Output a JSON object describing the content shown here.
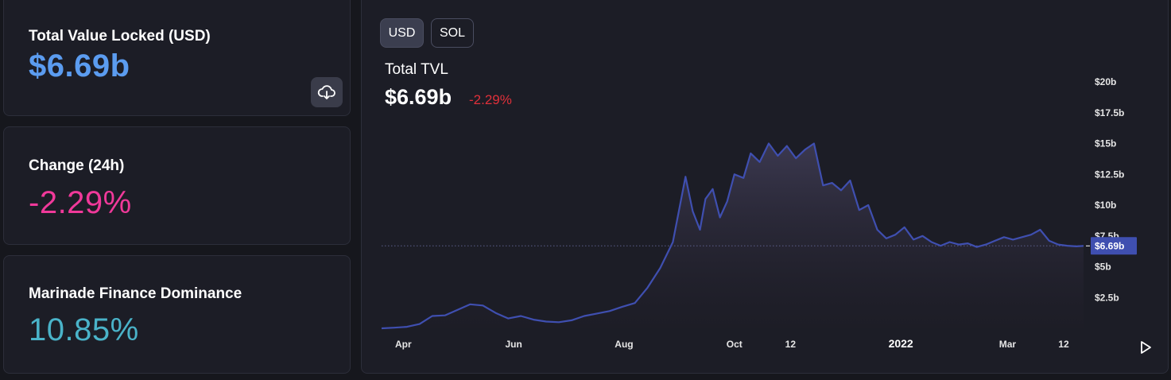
{
  "stats": {
    "tvl_label": "Total Value Locked (USD)",
    "tvl_value": "$6.69b",
    "change_label": "Change (24h)",
    "change_value": "-2.29%",
    "dominance_label": "Marinade Finance Dominance",
    "dominance_value": "10.85%"
  },
  "icons": {
    "download": "download-cloud-icon",
    "play": "play-icon"
  },
  "toggle": {
    "usd_label": "USD",
    "sol_label": "SOL",
    "selected": "USD"
  },
  "chart_header": {
    "title": "Total TVL",
    "value": "$6.69b",
    "change": "-2.29%"
  },
  "colors": {
    "tvl_value": "#5b9cf0",
    "change_value": "#f0399a",
    "dominance_value": "#4ab3c9",
    "chart_change": "#e0303a",
    "line": "#3f4fb0",
    "marker_bg": "#3f4fb0"
  },
  "chart_data": {
    "type": "area",
    "series": [
      {
        "x": [
          "2021-03-20",
          "2021-03-27",
          "2021-04-03",
          "2021-04-10",
          "2021-04-17",
          "2021-04-24",
          "2021-05-01",
          "2021-05-08",
          "2021-05-15",
          "2021-05-22",
          "2021-05-29",
          "2021-06-05",
          "2021-06-12",
          "2021-06-19",
          "2021-06-26",
          "2021-07-03",
          "2021-07-10",
          "2021-07-17",
          "2021-07-24",
          "2021-07-31",
          "2021-08-07",
          "2021-08-14",
          "2021-08-21",
          "2021-08-28",
          "2021-09-04",
          "2021-09-08",
          "2021-09-12",
          "2021-09-15",
          "2021-09-19",
          "2021-09-23",
          "2021-09-27",
          "2021-10-01",
          "2021-10-06",
          "2021-10-10",
          "2021-10-15",
          "2021-10-20",
          "2021-10-25",
          "2021-10-30",
          "2021-11-04",
          "2021-11-09",
          "2021-11-14",
          "2021-11-19",
          "2021-11-24",
          "2021-11-29",
          "2021-12-04",
          "2021-12-09",
          "2021-12-14",
          "2021-12-19",
          "2021-12-24",
          "2021-12-29",
          "2022-01-03",
          "2022-01-08",
          "2022-01-13",
          "2022-01-18",
          "2022-01-23",
          "2022-01-28",
          "2022-02-02",
          "2022-02-07",
          "2022-02-12",
          "2022-02-17",
          "2022-02-22",
          "2022-02-27",
          "2022-03-04",
          "2022-03-09",
          "2022-03-14",
          "2022-03-19",
          "2022-03-24",
          "2022-03-29",
          "2022-04-03",
          "2022-04-08",
          "2022-04-12"
        ],
        "values": [
          0.0,
          0.05,
          0.12,
          0.35,
          1.0,
          1.05,
          1.5,
          1.95,
          1.85,
          1.25,
          0.8,
          1.0,
          0.7,
          0.55,
          0.5,
          0.65,
          1.0,
          1.2,
          1.4,
          1.75,
          2.05,
          3.3,
          4.9,
          7.0,
          12.3,
          9.5,
          8.0,
          10.5,
          11.3,
          9.0,
          10.3,
          12.5,
          12.2,
          14.2,
          13.5,
          15.0,
          14.0,
          14.8,
          13.8,
          14.5,
          15.0,
          11.6,
          11.8,
          11.2,
          12.0,
          9.6,
          10.0,
          8.0,
          7.3,
          7.6,
          8.2,
          7.2,
          7.5,
          7.0,
          6.7,
          7.0,
          6.8,
          6.9,
          6.6,
          6.8,
          7.1,
          7.4,
          7.2,
          7.4,
          7.6,
          8.0,
          7.1,
          6.8,
          6.7,
          6.65,
          6.69
        ]
      }
    ],
    "x_tick_labels": [
      "Apr",
      "Jun",
      "Aug",
      "Oct",
      "12",
      "2022",
      "Mar",
      "12"
    ],
    "x_tick_dates": [
      "2021-04-01",
      "2021-06-01",
      "2021-08-01",
      "2021-10-01",
      "2021-11-01",
      "2022-01-01",
      "2022-03-01",
      "2022-04-01"
    ],
    "y_ticks": [
      2.5,
      5,
      7.5,
      10,
      12.5,
      15,
      17.5,
      20
    ],
    "y_tick_labels": [
      "$2.5b",
      "$5b",
      "$7.5b",
      "$10b",
      "$12.5b",
      "$15b",
      "$17.5b",
      "$20b"
    ],
    "current_value_label": "$6.69b",
    "current_value": 6.69,
    "ylim": [
      0,
      20
    ],
    "xlim": [
      "2021-03-20",
      "2022-04-12"
    ],
    "grid": false,
    "xlabel": "",
    "ylabel": ""
  }
}
